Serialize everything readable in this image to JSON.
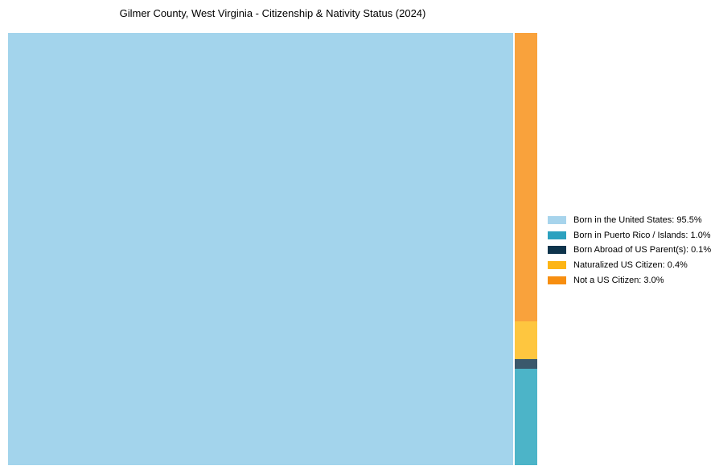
{
  "title": "Gilmer County, West Virginia - Citizenship & Nativity Status (2024)",
  "chart_data": {
    "type": "treemap",
    "title": "Gilmer County, West Virginia - Citizenship & Nativity Status (2024)",
    "unit": "%",
    "legend_position": "right",
    "categories": [
      "Born in the United States",
      "Born in Puerto Rico / Islands",
      "Born Abroad of US Parent(s)",
      "Naturalized US Citizen",
      "Not a US Citizen"
    ],
    "values": [
      95.5,
      1.0,
      0.1,
      0.4,
      3.0
    ],
    "series": [
      {
        "label": "Born in the United States",
        "value": 95.5,
        "legend_text": "Born in the United States: 95.5%",
        "legend_color": "#A7D4EC",
        "tile_color": "#A3D4EC"
      },
      {
        "label": "Born in Puerto Rico / Islands",
        "value": 1.0,
        "legend_text": "Born in Puerto Rico / Islands: 1.0%",
        "legend_color": "#2CA1BF",
        "tile_color": "#4CB4C8"
      },
      {
        "label": "Born Abroad of US Parent(s)",
        "value": 0.1,
        "legend_text": "Born Abroad of US Parent(s): 0.1%",
        "legend_color": "#0E344C",
        "tile_color": "#3A586C"
      },
      {
        "label": "Naturalized US Citizen",
        "value": 0.4,
        "legend_text": "Naturalized US Citizen: 0.4%",
        "legend_color": "#FDB515",
        "tile_color": "#FEC63F"
      },
      {
        "label": "Not a US Citizen",
        "value": 3.0,
        "legend_text": "Not a US Citizen: 3.0%",
        "legend_color": "#F78E10",
        "tile_color": "#F9A23C"
      }
    ],
    "main_tile_index": 0,
    "minor_column_order_top_to_bottom": [
      4,
      3,
      2,
      1
    ]
  }
}
